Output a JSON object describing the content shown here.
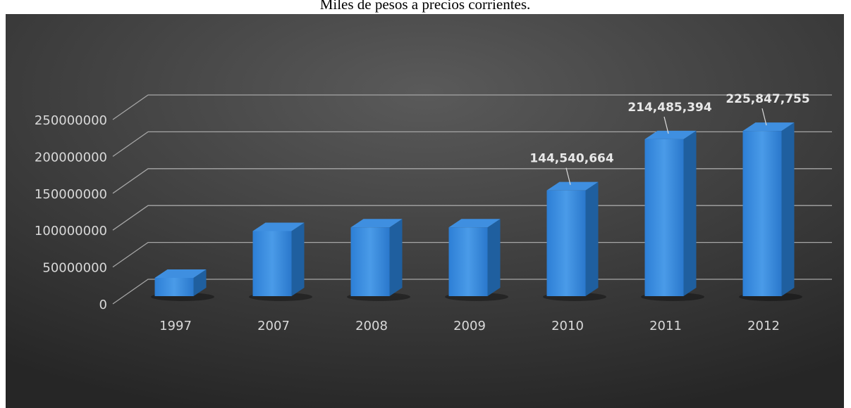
{
  "chart_data": {
    "type": "bar3d",
    "title": "Miles de pesos a precios corrientes.",
    "categories": [
      "1997",
      "2007",
      "2008",
      "2009",
      "2010",
      "2011",
      "2012"
    ],
    "values": [
      25000000,
      89000000,
      94000000,
      94000000,
      144540664,
      214485394,
      225847755
    ],
    "value_labels": [
      null,
      null,
      null,
      null,
      "144,540,664",
      "214,485,394",
      "225,847,755"
    ],
    "color": "#2e86de",
    "ylim": [
      0,
      250000000
    ],
    "yticks": [
      0,
      50000000,
      100000000,
      150000000,
      200000000,
      250000000
    ],
    "grid": true
  }
}
